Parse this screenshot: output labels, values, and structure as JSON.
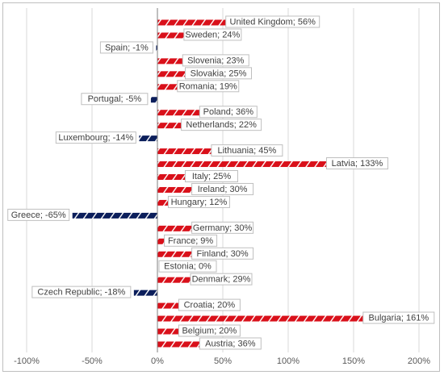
{
  "chart_data": {
    "type": "bar",
    "orientation": "horizontal",
    "categories": [
      "United Kingdom",
      "Sweden",
      "Spain",
      "Slovenia",
      "Slovakia",
      "Romania",
      "Portugal",
      "Poland",
      "Netherlands",
      "Luxembourg",
      "Lithuania",
      "Latvia",
      "Italy",
      "Ireland",
      "Hungary",
      "Greece",
      "Germany",
      "France",
      "Finland",
      "Estonia",
      "Denmark",
      "Czech Republic",
      "Croatia",
      "Bulgaria",
      "Belgium",
      "Austria"
    ],
    "values": [
      56,
      24,
      -1,
      23,
      25,
      19,
      -5,
      36,
      22,
      -14,
      45,
      133,
      25,
      30,
      12,
      -65,
      30,
      9,
      30,
      0,
      29,
      -18,
      20,
      161,
      20,
      36
    ],
    "data_labels": [
      "United Kingdom; 56%",
      "Sweden; 24%",
      "Spain; -1%",
      "Slovenia; 23%",
      "Slovakia; 25%",
      "Romania; 19%",
      "Portugal; -5%",
      "Poland; 36%",
      "Netherlands; 22%",
      "Luxembourg; -14%",
      "Lithuania; 45%",
      "Latvia; 133%",
      "Italy; 25%",
      "Ireland; 30%",
      "Hungary; 12%",
      "Greece; -65%",
      "Germany; 30%",
      "France; 9%",
      "Finland; 30%",
      "Estonia; 0%",
      "Denmark; 29%",
      "Czech Republic; -18%",
      "Croatia; 20%",
      "Bulgaria; 161%",
      "Belgium; 20%",
      "Austria; 36%"
    ],
    "x_ticks": [
      "-100%",
      "-50%",
      "0%",
      "50%",
      "100%",
      "150%",
      "200%"
    ],
    "x_tick_values": [
      -100,
      -50,
      0,
      50,
      100,
      150,
      200
    ],
    "xlim": [
      -100,
      200
    ],
    "value_unit": "%",
    "grid": true,
    "legend": false,
    "title": "",
    "xlabel": "",
    "ylabel": "",
    "colors": {
      "positive_fill": "#d9101a",
      "positive_stripe": "#ffffff",
      "negative_fill": "#0b1e5b",
      "negative_stripe": "#ffffff",
      "gridline": "#d9d9d9",
      "axis_line": "#7f7f7f",
      "label_border": "#bfbfbf"
    }
  }
}
